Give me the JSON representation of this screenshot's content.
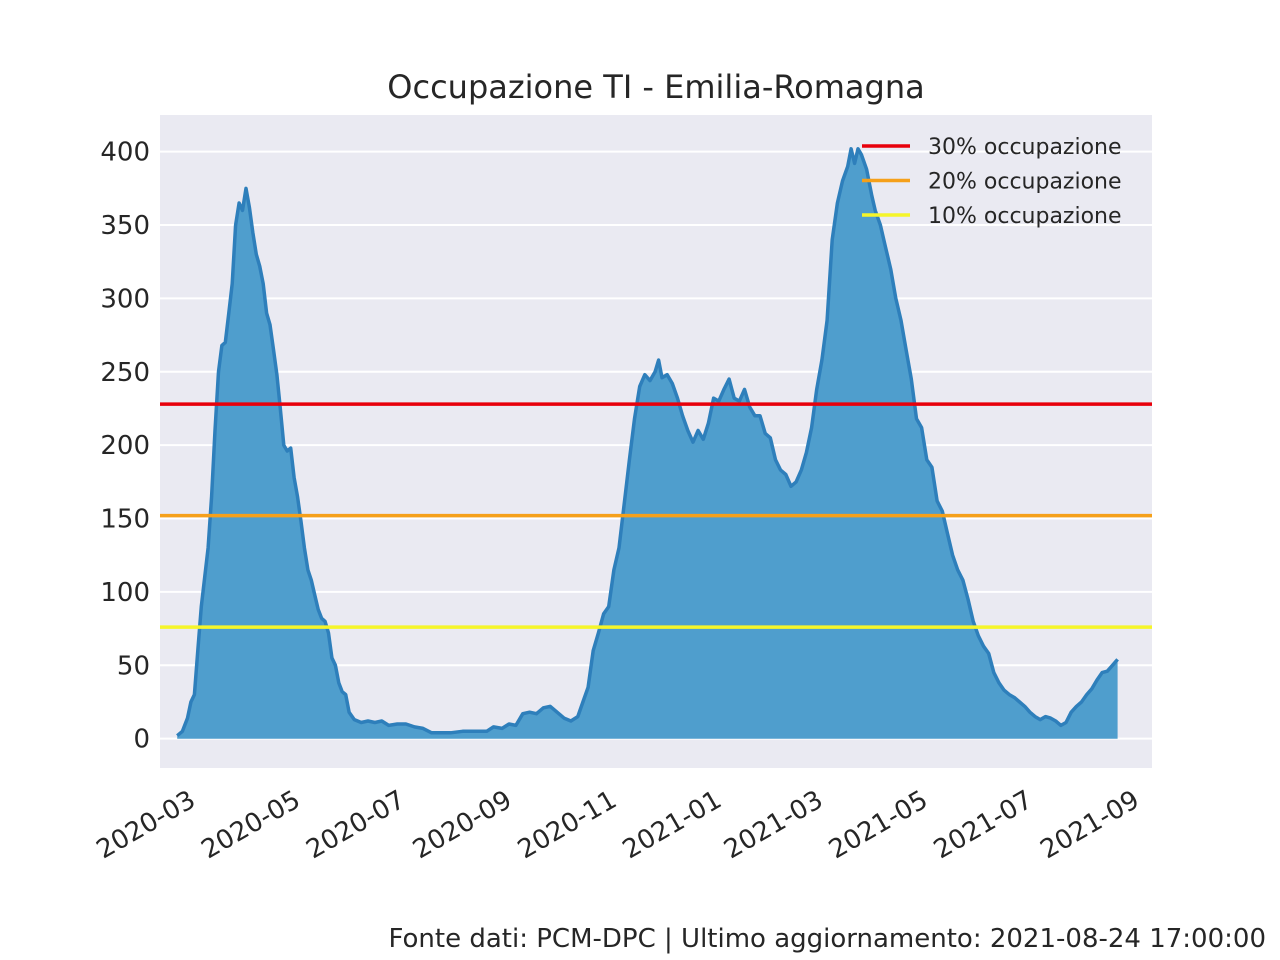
{
  "chart_data": {
    "type": "area",
    "title": "Occupazione TI - Emilia-Romagna",
    "xlabel": "",
    "ylabel": "",
    "ylim": [
      -20,
      425
    ],
    "xlim": [
      "2020-02-14",
      "2021-09-13"
    ],
    "yticks": [
      0,
      50,
      100,
      150,
      200,
      250,
      300,
      350,
      400
    ],
    "xticks": [
      "2020-03",
      "2020-05",
      "2020-07",
      "2020-09",
      "2020-11",
      "2021-01",
      "2021-03",
      "2021-05",
      "2021-07",
      "2021-09"
    ],
    "grid": true,
    "legend_position": "top-right",
    "series": [
      {
        "color": "#4f9ecd",
        "line_color": "#2e7fbb",
        "points": [
          [
            "2020-02-24",
            2
          ],
          [
            "2020-02-27",
            5
          ],
          [
            "2020-03-01",
            14
          ],
          [
            "2020-03-03",
            25
          ],
          [
            "2020-03-05",
            30
          ],
          [
            "2020-03-07",
            60
          ],
          [
            "2020-03-09",
            90
          ],
          [
            "2020-03-11",
            110
          ],
          [
            "2020-03-13",
            130
          ],
          [
            "2020-03-15",
            165
          ],
          [
            "2020-03-17",
            210
          ],
          [
            "2020-03-19",
            250
          ],
          [
            "2020-03-21",
            268
          ],
          [
            "2020-03-23",
            270
          ],
          [
            "2020-03-25",
            290
          ],
          [
            "2020-03-27",
            310
          ],
          [
            "2020-03-29",
            350
          ],
          [
            "2020-03-31",
            365
          ],
          [
            "2020-04-02",
            360
          ],
          [
            "2020-04-04",
            375
          ],
          [
            "2020-04-06",
            362
          ],
          [
            "2020-04-08",
            345
          ],
          [
            "2020-04-10",
            330
          ],
          [
            "2020-04-12",
            322
          ],
          [
            "2020-04-14",
            310
          ],
          [
            "2020-04-16",
            290
          ],
          [
            "2020-04-18",
            282
          ],
          [
            "2020-04-20",
            265
          ],
          [
            "2020-04-22",
            248
          ],
          [
            "2020-04-24",
            225
          ],
          [
            "2020-04-26",
            200
          ],
          [
            "2020-04-28",
            196
          ],
          [
            "2020-04-30",
            198
          ],
          [
            "2020-05-02",
            178
          ],
          [
            "2020-05-04",
            165
          ],
          [
            "2020-05-06",
            148
          ],
          [
            "2020-05-08",
            130
          ],
          [
            "2020-05-10",
            115
          ],
          [
            "2020-05-12",
            108
          ],
          [
            "2020-05-14",
            98
          ],
          [
            "2020-05-16",
            88
          ],
          [
            "2020-05-18",
            82
          ],
          [
            "2020-05-20",
            80
          ],
          [
            "2020-05-22",
            72
          ],
          [
            "2020-05-24",
            55
          ],
          [
            "2020-05-26",
            50
          ],
          [
            "2020-05-28",
            38
          ],
          [
            "2020-05-30",
            32
          ],
          [
            "2020-06-01",
            30
          ],
          [
            "2020-06-03",
            18
          ],
          [
            "2020-06-06",
            13
          ],
          [
            "2020-06-10",
            11
          ],
          [
            "2020-06-14",
            12
          ],
          [
            "2020-06-18",
            11
          ],
          [
            "2020-06-22",
            12
          ],
          [
            "2020-06-26",
            9
          ],
          [
            "2020-07-01",
            10
          ],
          [
            "2020-07-06",
            10
          ],
          [
            "2020-07-11",
            8
          ],
          [
            "2020-07-16",
            7
          ],
          [
            "2020-07-21",
            4
          ],
          [
            "2020-07-26",
            4
          ],
          [
            "2020-08-01",
            4
          ],
          [
            "2020-08-08",
            5
          ],
          [
            "2020-08-15",
            5
          ],
          [
            "2020-08-22",
            5
          ],
          [
            "2020-08-26",
            8
          ],
          [
            "2020-08-31",
            7
          ],
          [
            "2020-09-04",
            10
          ],
          [
            "2020-09-08",
            9
          ],
          [
            "2020-09-12",
            17
          ],
          [
            "2020-09-16",
            18
          ],
          [
            "2020-09-20",
            17
          ],
          [
            "2020-09-24",
            21
          ],
          [
            "2020-09-28",
            22
          ],
          [
            "2020-10-02",
            18
          ],
          [
            "2020-10-06",
            14
          ],
          [
            "2020-10-10",
            12
          ],
          [
            "2020-10-14",
            15
          ],
          [
            "2020-10-17",
            25
          ],
          [
            "2020-10-20",
            35
          ],
          [
            "2020-10-23",
            60
          ],
          [
            "2020-10-26",
            72
          ],
          [
            "2020-10-29",
            85
          ],
          [
            "2020-11-01",
            90
          ],
          [
            "2020-11-04",
            115
          ],
          [
            "2020-11-07",
            130
          ],
          [
            "2020-11-10",
            160
          ],
          [
            "2020-11-13",
            190
          ],
          [
            "2020-11-16",
            218
          ],
          [
            "2020-11-19",
            240
          ],
          [
            "2020-11-22",
            248
          ],
          [
            "2020-11-25",
            244
          ],
          [
            "2020-11-28",
            250
          ],
          [
            "2020-11-30",
            258
          ],
          [
            "2020-12-02",
            246
          ],
          [
            "2020-12-05",
            248
          ],
          [
            "2020-12-08",
            242
          ],
          [
            "2020-12-11",
            232
          ],
          [
            "2020-12-14",
            220
          ],
          [
            "2020-12-17",
            210
          ],
          [
            "2020-12-20",
            202
          ],
          [
            "2020-12-23",
            210
          ],
          [
            "2020-12-26",
            204
          ],
          [
            "2020-12-29",
            215
          ],
          [
            "2021-01-01",
            232
          ],
          [
            "2021-01-04",
            230
          ],
          [
            "2021-01-07",
            238
          ],
          [
            "2021-01-10",
            245
          ],
          [
            "2021-01-13",
            232
          ],
          [
            "2021-01-16",
            230
          ],
          [
            "2021-01-19",
            238
          ],
          [
            "2021-01-22",
            226
          ],
          [
            "2021-01-25",
            220
          ],
          [
            "2021-01-28",
            220
          ],
          [
            "2021-01-31",
            208
          ],
          [
            "2021-02-03",
            205
          ],
          [
            "2021-02-06",
            190
          ],
          [
            "2021-02-09",
            183
          ],
          [
            "2021-02-12",
            180
          ],
          [
            "2021-02-15",
            172
          ],
          [
            "2021-02-18",
            175
          ],
          [
            "2021-02-21",
            183
          ],
          [
            "2021-02-24",
            195
          ],
          [
            "2021-02-27",
            212
          ],
          [
            "2021-03-02",
            238
          ],
          [
            "2021-03-05",
            258
          ],
          [
            "2021-03-08",
            285
          ],
          [
            "2021-03-11",
            340
          ],
          [
            "2021-03-14",
            365
          ],
          [
            "2021-03-17",
            380
          ],
          [
            "2021-03-20",
            390
          ],
          [
            "2021-03-22",
            402
          ],
          [
            "2021-03-24",
            392
          ],
          [
            "2021-03-26",
            402
          ],
          [
            "2021-03-28",
            398
          ],
          [
            "2021-03-31",
            388
          ],
          [
            "2021-04-03",
            370
          ],
          [
            "2021-04-05",
            360
          ],
          [
            "2021-04-08",
            350
          ],
          [
            "2021-04-11",
            335
          ],
          [
            "2021-04-14",
            320
          ],
          [
            "2021-04-17",
            300
          ],
          [
            "2021-04-20",
            285
          ],
          [
            "2021-04-23",
            265
          ],
          [
            "2021-04-26",
            245
          ],
          [
            "2021-04-29",
            218
          ],
          [
            "2021-05-02",
            212
          ],
          [
            "2021-05-05",
            190
          ],
          [
            "2021-05-08",
            185
          ],
          [
            "2021-05-11",
            162
          ],
          [
            "2021-05-14",
            155
          ],
          [
            "2021-05-17",
            140
          ],
          [
            "2021-05-20",
            125
          ],
          [
            "2021-05-23",
            115
          ],
          [
            "2021-05-26",
            108
          ],
          [
            "2021-05-29",
            95
          ],
          [
            "2021-06-01",
            80
          ],
          [
            "2021-06-04",
            70
          ],
          [
            "2021-06-07",
            63
          ],
          [
            "2021-06-10",
            58
          ],
          [
            "2021-06-13",
            45
          ],
          [
            "2021-06-16",
            38
          ],
          [
            "2021-06-19",
            33
          ],
          [
            "2021-06-22",
            30
          ],
          [
            "2021-06-25",
            28
          ],
          [
            "2021-06-28",
            25
          ],
          [
            "2021-07-01",
            22
          ],
          [
            "2021-07-04",
            18
          ],
          [
            "2021-07-07",
            15
          ],
          [
            "2021-07-10",
            13
          ],
          [
            "2021-07-13",
            15
          ],
          [
            "2021-07-16",
            14
          ],
          [
            "2021-07-19",
            12
          ],
          [
            "2021-07-22",
            9
          ],
          [
            "2021-07-25",
            11
          ],
          [
            "2021-07-28",
            18
          ],
          [
            "2021-07-31",
            22
          ],
          [
            "2021-08-03",
            25
          ],
          [
            "2021-08-06",
            30
          ],
          [
            "2021-08-09",
            34
          ],
          [
            "2021-08-12",
            40
          ],
          [
            "2021-08-15",
            45
          ],
          [
            "2021-08-18",
            46
          ],
          [
            "2021-08-21",
            50
          ],
          [
            "2021-08-24",
            54
          ]
        ]
      }
    ],
    "thresholds": [
      {
        "label": "30% occupazione",
        "value": 228,
        "color": "#e8000b"
      },
      {
        "label": "20% occupazione",
        "value": 152,
        "color": "#f5a01a"
      },
      {
        "label": "10% occupazione",
        "value": 76,
        "color": "#f5f52a"
      }
    ]
  },
  "footer": "Fonte dati: PCM-DPC | Ultimo aggiornamento: 2021-08-24 17:00:00"
}
